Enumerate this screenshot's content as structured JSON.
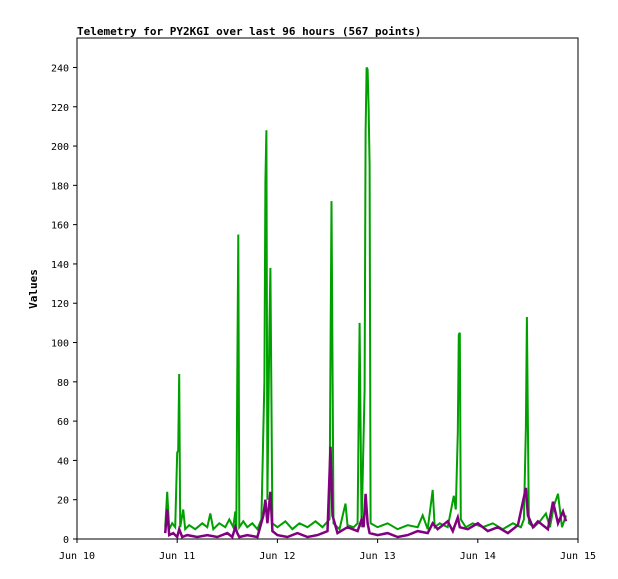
{
  "chart_data": {
    "type": "line",
    "title": "Telemetry for PY2KGI over last 96 hours (567 points)",
    "xlabel": "",
    "ylabel": "Values",
    "ylim": [
      0,
      255
    ],
    "xlim": [
      0,
      5
    ],
    "x_tick_labels": [
      "Jun 10",
      "Jun 11",
      "Jun 12",
      "Jun 13",
      "Jun 14",
      "Jun 15"
    ],
    "x_tick_values": [
      0,
      1,
      2,
      3,
      4,
      5
    ],
    "y_ticks": [
      0,
      20,
      40,
      60,
      80,
      100,
      120,
      140,
      160,
      180,
      200,
      220,
      240
    ],
    "grid": false,
    "series": [
      {
        "color": "#00a000",
        "points": [
          [
            0.88,
            6
          ],
          [
            0.9,
            24
          ],
          [
            0.92,
            5
          ],
          [
            0.95,
            8
          ],
          [
            0.98,
            6
          ],
          [
            1.0,
            44
          ],
          [
            1.01,
            45
          ],
          [
            1.02,
            84
          ],
          [
            1.03,
            6
          ],
          [
            1.06,
            15
          ],
          [
            1.08,
            5
          ],
          [
            1.12,
            7
          ],
          [
            1.18,
            5
          ],
          [
            1.25,
            8
          ],
          [
            1.3,
            6
          ],
          [
            1.33,
            13
          ],
          [
            1.36,
            5
          ],
          [
            1.42,
            8
          ],
          [
            1.48,
            6
          ],
          [
            1.52,
            10
          ],
          [
            1.56,
            6
          ],
          [
            1.58,
            14
          ],
          [
            1.59,
            5
          ],
          [
            1.6,
            84
          ],
          [
            1.61,
            155
          ],
          [
            1.62,
            6
          ],
          [
            1.66,
            9
          ],
          [
            1.7,
            6
          ],
          [
            1.75,
            8
          ],
          [
            1.8,
            5
          ],
          [
            1.84,
            10
          ],
          [
            1.87,
            80
          ],
          [
            1.88,
            182
          ],
          [
            1.89,
            208
          ],
          [
            1.9,
            20
          ],
          [
            1.91,
            64
          ],
          [
            1.92,
            107
          ],
          [
            1.93,
            138
          ],
          [
            1.94,
            73
          ],
          [
            1.95,
            8
          ],
          [
            2.0,
            6
          ],
          [
            2.08,
            9
          ],
          [
            2.15,
            5
          ],
          [
            2.22,
            8
          ],
          [
            2.3,
            6
          ],
          [
            2.38,
            9
          ],
          [
            2.45,
            6
          ],
          [
            2.52,
            10
          ],
          [
            2.53,
            94
          ],
          [
            2.54,
            172
          ],
          [
            2.55,
            90
          ],
          [
            2.56,
            8
          ],
          [
            2.62,
            5
          ],
          [
            2.68,
            18
          ],
          [
            2.7,
            7
          ],
          [
            2.76,
            6
          ],
          [
            2.8,
            8
          ],
          [
            2.82,
            110
          ],
          [
            2.83,
            56
          ],
          [
            2.84,
            6
          ],
          [
            2.87,
            76
          ],
          [
            2.88,
            207
          ],
          [
            2.89,
            240
          ],
          [
            2.9,
            239
          ],
          [
            2.91,
            220
          ],
          [
            2.92,
            190
          ],
          [
            2.93,
            8
          ],
          [
            3.0,
            6
          ],
          [
            3.1,
            8
          ],
          [
            3.2,
            5
          ],
          [
            3.3,
            7
          ],
          [
            3.4,
            6
          ],
          [
            3.45,
            12
          ],
          [
            3.5,
            5
          ],
          [
            3.55,
            25
          ],
          [
            3.57,
            6
          ],
          [
            3.62,
            8
          ],
          [
            3.7,
            6
          ],
          [
            3.76,
            22
          ],
          [
            3.78,
            15
          ],
          [
            3.8,
            54
          ],
          [
            3.81,
            104
          ],
          [
            3.82,
            105
          ],
          [
            3.83,
            10
          ],
          [
            3.88,
            6
          ],
          [
            3.95,
            8
          ],
          [
            4.05,
            6
          ],
          [
            4.15,
            8
          ],
          [
            4.25,
            5
          ],
          [
            4.35,
            8
          ],
          [
            4.43,
            6
          ],
          [
            4.46,
            10
          ],
          [
            4.48,
            57
          ],
          [
            4.49,
            113
          ],
          [
            4.5,
            58
          ],
          [
            4.51,
            8
          ],
          [
            4.56,
            6
          ],
          [
            4.62,
            9
          ],
          [
            4.68,
            13
          ],
          [
            4.72,
            6
          ],
          [
            4.76,
            17
          ],
          [
            4.8,
            23
          ],
          [
            4.84,
            6
          ],
          [
            4.88,
            12
          ]
        ]
      },
      {
        "color": "#800080",
        "points": [
          [
            0.88,
            3
          ],
          [
            0.9,
            15
          ],
          [
            0.92,
            2
          ],
          [
            0.96,
            3
          ],
          [
            1.0,
            1
          ],
          [
            1.02,
            5
          ],
          [
            1.05,
            1
          ],
          [
            1.1,
            2
          ],
          [
            1.2,
            1
          ],
          [
            1.3,
            2
          ],
          [
            1.4,
            1
          ],
          [
            1.5,
            3
          ],
          [
            1.55,
            1
          ],
          [
            1.58,
            6
          ],
          [
            1.6,
            3
          ],
          [
            1.62,
            1
          ],
          [
            1.7,
            2
          ],
          [
            1.8,
            1
          ],
          [
            1.86,
            12
          ],
          [
            1.88,
            20
          ],
          [
            1.9,
            8
          ],
          [
            1.93,
            24
          ],
          [
            1.95,
            4
          ],
          [
            2.0,
            2
          ],
          [
            2.1,
            1
          ],
          [
            2.2,
            3
          ],
          [
            2.3,
            1
          ],
          [
            2.4,
            2
          ],
          [
            2.5,
            4
          ],
          [
            2.53,
            47
          ],
          [
            2.55,
            12
          ],
          [
            2.6,
            3
          ],
          [
            2.7,
            6
          ],
          [
            2.8,
            4
          ],
          [
            2.84,
            10
          ],
          [
            2.86,
            6
          ],
          [
            2.88,
            23
          ],
          [
            2.9,
            8
          ],
          [
            2.92,
            3
          ],
          [
            3.0,
            2
          ],
          [
            3.1,
            3
          ],
          [
            3.2,
            1
          ],
          [
            3.3,
            2
          ],
          [
            3.4,
            4
          ],
          [
            3.5,
            3
          ],
          [
            3.55,
            8
          ],
          [
            3.6,
            5
          ],
          [
            3.7,
            9
          ],
          [
            3.75,
            4
          ],
          [
            3.8,
            11
          ],
          [
            3.82,
            6
          ],
          [
            3.9,
            5
          ],
          [
            4.0,
            8
          ],
          [
            4.1,
            4
          ],
          [
            4.2,
            6
          ],
          [
            4.3,
            3
          ],
          [
            4.4,
            7
          ],
          [
            4.48,
            26
          ],
          [
            4.5,
            12
          ],
          [
            4.55,
            6
          ],
          [
            4.6,
            9
          ],
          [
            4.7,
            5
          ],
          [
            4.75,
            19
          ],
          [
            4.8,
            8
          ],
          [
            4.85,
            14
          ],
          [
            4.88,
            9
          ]
        ]
      }
    ]
  }
}
